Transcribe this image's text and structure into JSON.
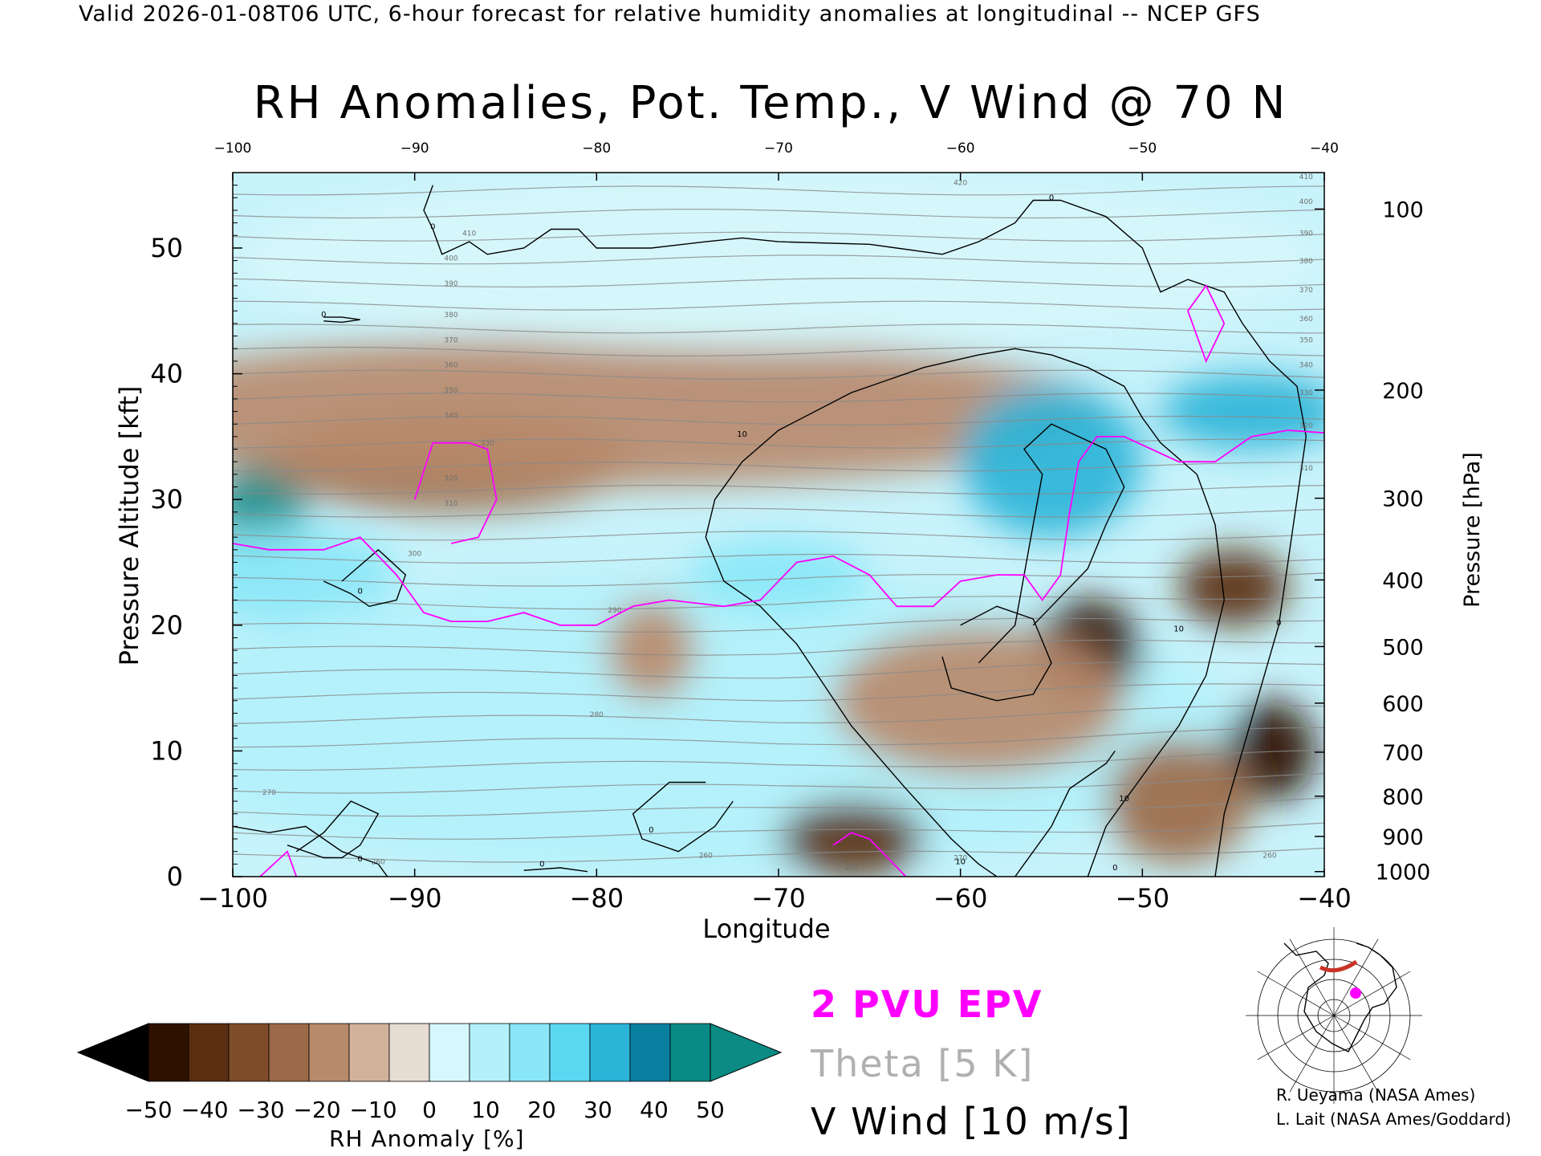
{
  "header": "Valid 2026-01-08T06 UTC, 6-hour forecast for relative humidity anomalies at longitudinal -- NCEP GFS",
  "chart_data": {
    "type": "heatmap",
    "title": "RH Anomalies, Pot. Temp., V Wind @ 70 N",
    "xlabel": "Longitude",
    "ylabel_left": "Pressure Altitude [kft]",
    "ylabel_right": "Pressure [hPa]",
    "xlim": [
      -100,
      -40
    ],
    "ylim": [
      0,
      56
    ],
    "x_ticks": [
      -100,
      -90,
      -80,
      -70,
      -60,
      -50,
      -40
    ],
    "x_tick_labels": [
      "−100",
      "−90",
      "−80",
      "−70",
      "−60",
      "−50",
      "−40"
    ],
    "top_tick_labels": [
      "−100",
      "−90",
      "−80",
      "−70",
      "−60",
      "−50",
      "−40"
    ],
    "y_ticks": [
      0,
      10,
      20,
      30,
      40,
      50
    ],
    "pressure_ticks": [
      {
        "hpa": 100,
        "kft": 53.1
      },
      {
        "hpa": 200,
        "kft": 38.7
      },
      {
        "hpa": 300,
        "kft": 30.1
      },
      {
        "hpa": 400,
        "kft": 23.6
      },
      {
        "hpa": 500,
        "kft": 18.3
      },
      {
        "hpa": 600,
        "kft": 13.8
      },
      {
        "hpa": 700,
        "kft": 9.9
      },
      {
        "hpa": 800,
        "kft": 6.4
      },
      {
        "hpa": 900,
        "kft": 3.2
      },
      {
        "hpa": 1000,
        "kft": 0.4
      }
    ],
    "rh_anomaly_regions": [
      {
        "x": -98.5,
        "y": 29,
        "rx": 2.5,
        "ry": 4,
        "value": 45
      },
      {
        "x": -97,
        "y": 24,
        "rx": 6,
        "ry": 4,
        "value": 20
      },
      {
        "x": -88,
        "y": 33,
        "rx": 10,
        "ry": 4,
        "value": -22
      },
      {
        "x": -80,
        "y": 37,
        "rx": 28,
        "ry": 6,
        "value": -15
      },
      {
        "x": -75,
        "y": 12,
        "rx": 30,
        "ry": 12,
        "value": 8
      },
      {
        "x": -70,
        "y": 24,
        "rx": 5,
        "ry": 3,
        "value": 20
      },
      {
        "x": -77,
        "y": 18,
        "rx": 2.5,
        "ry": 4,
        "value": -18
      },
      {
        "x": -55,
        "y": 33,
        "rx": 5,
        "ry": 6,
        "value": 35
      },
      {
        "x": -44,
        "y": 37,
        "rx": 5,
        "ry": 3,
        "value": 30
      },
      {
        "x": -53,
        "y": 18,
        "rx": 3,
        "ry": 4,
        "value": -45
      },
      {
        "x": -59,
        "y": 14,
        "rx": 8,
        "ry": 6,
        "value": -20
      },
      {
        "x": -66,
        "y": 3,
        "rx": 4,
        "ry": 3,
        "value": -40
      },
      {
        "x": -45,
        "y": 23,
        "rx": 3,
        "ry": 3,
        "value": -40
      },
      {
        "x": -43,
        "y": 10,
        "rx": 2.5,
        "ry": 4,
        "value": -45
      },
      {
        "x": -48,
        "y": 6,
        "rx": 4,
        "ry": 5,
        "value": -25
      },
      {
        "x": -70,
        "y": 49,
        "rx": 30,
        "ry": 7,
        "value": 2
      }
    ],
    "theta_contour_labels": [
      {
        "x": -60,
        "y": 55,
        "text": "420"
      },
      {
        "x": -41,
        "y": 55.5,
        "text": "410"
      },
      {
        "x": -41,
        "y": 53.5,
        "text": "400"
      },
      {
        "x": -41,
        "y": 51,
        "text": "390"
      },
      {
        "x": -41,
        "y": 48.8,
        "text": "380"
      },
      {
        "x": -41,
        "y": 46.5,
        "text": "370"
      },
      {
        "x": -41,
        "y": 44.2,
        "text": "360"
      },
      {
        "x": -41,
        "y": 42.5,
        "text": "350"
      },
      {
        "x": -41,
        "y": 40.5,
        "text": "340"
      },
      {
        "x": -41,
        "y": 38.3,
        "text": "330"
      },
      {
        "x": -41,
        "y": 35.7,
        "text": "320"
      },
      {
        "x": -41,
        "y": 32.3,
        "text": "310"
      },
      {
        "x": -87,
        "y": 51,
        "text": "410"
      },
      {
        "x": -88,
        "y": 49,
        "text": "400"
      },
      {
        "x": -88,
        "y": 47,
        "text": "390"
      },
      {
        "x": -88,
        "y": 44.5,
        "text": "380"
      },
      {
        "x": -88,
        "y": 42.5,
        "text": "370"
      },
      {
        "x": -88,
        "y": 40.5,
        "text": "360"
      },
      {
        "x": -88,
        "y": 38.5,
        "text": "350"
      },
      {
        "x": -88,
        "y": 36.5,
        "text": "340"
      },
      {
        "x": -86,
        "y": 34.3,
        "text": "330"
      },
      {
        "x": -88,
        "y": 31.5,
        "text": "320"
      },
      {
        "x": -88,
        "y": 29.5,
        "text": "310"
      },
      {
        "x": -90,
        "y": 25.5,
        "text": "300"
      },
      {
        "x": -79,
        "y": 21,
        "text": "290"
      },
      {
        "x": -80,
        "y": 12.7,
        "text": "280"
      },
      {
        "x": -98,
        "y": 6.5,
        "text": "270"
      },
      {
        "x": -92,
        "y": 1,
        "text": "260"
      },
      {
        "x": -74,
        "y": 1.5,
        "text": "260"
      },
      {
        "x": -66,
        "y": 0.5,
        "text": "260"
      },
      {
        "x": -60,
        "y": 1.3,
        "text": "270"
      },
      {
        "x": -43,
        "y": 1.5,
        "text": "260"
      }
    ],
    "vwind_contour_labels": [
      {
        "x": -93,
        "y": 22.5,
        "text": "0"
      },
      {
        "x": -89,
        "y": 51.5,
        "text": "0"
      },
      {
        "x": -95,
        "y": 44.5,
        "text": "0"
      },
      {
        "x": -55,
        "y": 53.8,
        "text": "0"
      },
      {
        "x": -72,
        "y": 35,
        "text": "10"
      },
      {
        "x": -51,
        "y": 6,
        "text": "10"
      },
      {
        "x": -48,
        "y": 19.5,
        "text": "10"
      },
      {
        "x": -42.5,
        "y": 20,
        "text": "0"
      },
      {
        "x": -60,
        "y": 1,
        "text": "10"
      },
      {
        "x": -83,
        "y": 0.8,
        "text": "0"
      },
      {
        "x": -77,
        "y": 3.5,
        "text": "0"
      },
      {
        "x": -93,
        "y": 1.2,
        "text": "0"
      },
      {
        "x": -51.5,
        "y": 0.5,
        "text": "0"
      }
    ],
    "vwind_contours": [
      [
        [
          -89,
          55
        ],
        [
          -89.5,
          53
        ],
        [
          -89,
          51.5
        ],
        [
          -88.5,
          49.5
        ],
        [
          -87,
          50.5
        ],
        [
          -86,
          49.5
        ],
        [
          -84,
          50
        ],
        [
          -82.5,
          51.5
        ],
        [
          -81,
          51.5
        ],
        [
          -80,
          50
        ],
        [
          -77,
          50
        ],
        [
          -74,
          50.5
        ],
        [
          -72,
          50.8
        ],
        [
          -70,
          50.5
        ],
        [
          -65,
          50.3
        ],
        [
          -61,
          49.5
        ],
        [
          -59,
          50.5
        ],
        [
          -57,
          52
        ],
        [
          -56,
          53.8
        ],
        [
          -54.5,
          53.8
        ],
        [
          -52,
          52.5
        ],
        [
          -50,
          50
        ],
        [
          -49,
          46.5
        ],
        [
          -47.5,
          47.5
        ],
        [
          -45.5,
          46.5
        ],
        [
          -44.5,
          44
        ],
        [
          -43,
          41
        ],
        [
          -41.5,
          39
        ],
        [
          -41,
          35
        ],
        [
          -41.5,
          30
        ],
        [
          -42,
          25
        ],
        [
          -42.5,
          20
        ],
        [
          -43.5,
          15
        ],
        [
          -44.5,
          10
        ],
        [
          -45.5,
          5
        ],
        [
          -46,
          0
        ]
      ],
      [
        [
          -100,
          4
        ],
        [
          -98,
          3.5
        ],
        [
          -96,
          4
        ],
        [
          -95,
          3
        ],
        [
          -94,
          2
        ],
        [
          -93,
          1.5
        ],
        [
          -92,
          1
        ],
        [
          -91.5,
          0
        ]
      ],
      [
        [
          -97,
          2.5
        ],
        [
          -95,
          1.5
        ],
        [
          -94,
          1.5
        ],
        [
          -93,
          2.5
        ],
        [
          -92,
          5
        ],
        [
          -93.5,
          6
        ],
        [
          -95,
          3.5
        ],
        [
          -96.5,
          2
        ]
      ],
      [
        [
          -94,
          23.5
        ],
        [
          -92,
          26
        ],
        [
          -90.5,
          24
        ],
        [
          -91,
          22
        ],
        [
          -92.5,
          21.5
        ],
        [
          -93.5,
          22.5
        ],
        [
          -95,
          23.5
        ]
      ],
      [
        [
          -95,
          44.5
        ],
        [
          -94,
          44.5
        ],
        [
          -93,
          44.3
        ],
        [
          -94,
          44.1
        ],
        [
          -95,
          44.2
        ]
      ],
      [
        [
          -73,
          23.5
        ],
        [
          -74,
          27
        ],
        [
          -73.5,
          30
        ],
        [
          -72,
          33
        ],
        [
          -70,
          35.5
        ],
        [
          -66,
          38.5
        ],
        [
          -62,
          40.5
        ],
        [
          -59,
          41.5
        ],
        [
          -57,
          42
        ],
        [
          -55,
          41.5
        ],
        [
          -53,
          40.5
        ],
        [
          -51,
          39
        ],
        [
          -50,
          36.5
        ],
        [
          -49,
          34.5
        ],
        [
          -47,
          32
        ],
        [
          -46,
          28
        ],
        [
          -45.5,
          22
        ],
        [
          -46.5,
          16
        ],
        [
          -48,
          12
        ],
        [
          -49.5,
          9
        ],
        [
          -51,
          6
        ],
        [
          -52,
          4
        ],
        [
          -53,
          0
        ]
      ],
      [
        [
          -73,
          23.5
        ],
        [
          -71,
          21.5
        ],
        [
          -69,
          18.5
        ],
        [
          -66,
          12
        ],
        [
          -63,
          7
        ],
        [
          -60.5,
          3
        ],
        [
          -59,
          1
        ],
        [
          -58,
          0
        ]
      ],
      [
        [
          -59,
          17
        ],
        [
          -57,
          20
        ],
        [
          -56.5,
          24
        ],
        [
          -56,
          28
        ],
        [
          -55.5,
          32
        ],
        [
          -56.5,
          34
        ],
        [
          -55,
          36
        ],
        [
          -53.5,
          35
        ],
        [
          -52,
          34
        ],
        [
          -51,
          31
        ],
        [
          -52,
          28
        ],
        [
          -53,
          24.5
        ],
        [
          -55,
          21.5
        ],
        [
          -56,
          20
        ]
      ],
      [
        [
          -60,
          20
        ],
        [
          -58,
          21.5
        ],
        [
          -56,
          20.5
        ],
        [
          -55,
          17
        ],
        [
          -56,
          14.5
        ],
        [
          -58,
          14
        ],
        [
          -60.5,
          15
        ],
        [
          -61,
          17.5
        ]
      ],
      [
        [
          -74,
          7.5
        ],
        [
          -76,
          7.5
        ],
        [
          -78,
          5
        ],
        [
          -77.5,
          3
        ],
        [
          -75.5,
          2
        ],
        [
          -73.5,
          4
        ],
        [
          -72.5,
          6
        ]
      ],
      [
        [
          -57,
          0
        ],
        [
          -55,
          4
        ],
        [
          -54,
          7
        ],
        [
          -52,
          9
        ],
        [
          -51.5,
          10
        ]
      ],
      [
        [
          -84,
          0.5
        ],
        [
          -82,
          0.7
        ],
        [
          -80.5,
          0.4
        ]
      ]
    ],
    "pv2_contours": [
      [
        [
          -100,
          26.5
        ],
        [
          -98,
          26
        ],
        [
          -95,
          26
        ],
        [
          -93,
          27
        ],
        [
          -91,
          24
        ],
        [
          -89.5,
          21
        ],
        [
          -88,
          20.3
        ],
        [
          -86,
          20.3
        ],
        [
          -84,
          21
        ],
        [
          -82,
          20
        ],
        [
          -80,
          20
        ],
        [
          -78,
          21.5
        ],
        [
          -76,
          22
        ],
        [
          -73,
          21.5
        ],
        [
          -71,
          22
        ],
        [
          -69,
          25
        ],
        [
          -67,
          25.5
        ],
        [
          -65,
          24
        ],
        [
          -63.5,
          21.5
        ],
        [
          -61.5,
          21.5
        ],
        [
          -60,
          23.5
        ],
        [
          -58,
          24
        ],
        [
          -56.5,
          24
        ],
        [
          -55.5,
          22
        ],
        [
          -54.5,
          24
        ],
        [
          -54,
          29
        ],
        [
          -53.5,
          33
        ],
        [
          -52.5,
          35
        ],
        [
          -51,
          35
        ],
        [
          -49.5,
          34
        ],
        [
          -48,
          33
        ],
        [
          -46,
          33
        ],
        [
          -44,
          35
        ],
        [
          -42,
          35.5
        ],
        [
          -40,
          35.3
        ]
      ],
      [
        [
          -90,
          30
        ],
        [
          -89,
          34.5
        ],
        [
          -87,
          34.5
        ],
        [
          -86,
          34
        ],
        [
          -85.5,
          30
        ],
        [
          -86.5,
          27
        ],
        [
          -88,
          26.5
        ]
      ],
      [
        [
          -98.5,
          0
        ],
        [
          -97,
          2
        ],
        [
          -96.5,
          0
        ]
      ],
      [
        [
          -67,
          2.5
        ],
        [
          -66,
          3.5
        ],
        [
          -65,
          3
        ],
        [
          -64,
          1.5
        ],
        [
          -63,
          0
        ]
      ],
      [
        [
          -45.5,
          44
        ],
        [
          -46.5,
          47
        ],
        [
          -47.5,
          45
        ],
        [
          -46.5,
          41
        ],
        [
          -45.5,
          44
        ]
      ]
    ],
    "colorbar": {
      "label": "RH Anomaly [%]",
      "tick_labels": [
        "−50",
        "−40",
        "−30",
        "−20",
        "−10",
        "0",
        "10",
        "20",
        "30",
        "40",
        "50"
      ],
      "colors": [
        "#2e1200",
        "#5a2e10",
        "#7f4c29",
        "#9c6a48",
        "#b88a6c",
        "#d3b29c",
        "#e8ddd2",
        "#d6f7fb",
        "#b2f1fb",
        "#8ae7f7",
        "#5ad8f2",
        "#2ab4d8",
        "#0a7fa0",
        "#098a86"
      ],
      "underflow_color": "#000000",
      "overflow_color": "#0b8b84"
    }
  },
  "legend": {
    "pv": "2 PVU EPV",
    "theta": "Theta [5 K]",
    "vwind": "V Wind [10 m/s]",
    "pv_color": "#ff00ff",
    "theta_color": "#b0b0b0",
    "vwind_color": "#000000"
  },
  "credits": {
    "line1": "R. Ueyama (NASA Ames)",
    "line2": "L. Lait (NASA Ames/Goddard)"
  },
  "inset_map": {
    "icon": "polar-map-icon",
    "marker_color": "#ff00ff",
    "track_color": "#c83226"
  }
}
